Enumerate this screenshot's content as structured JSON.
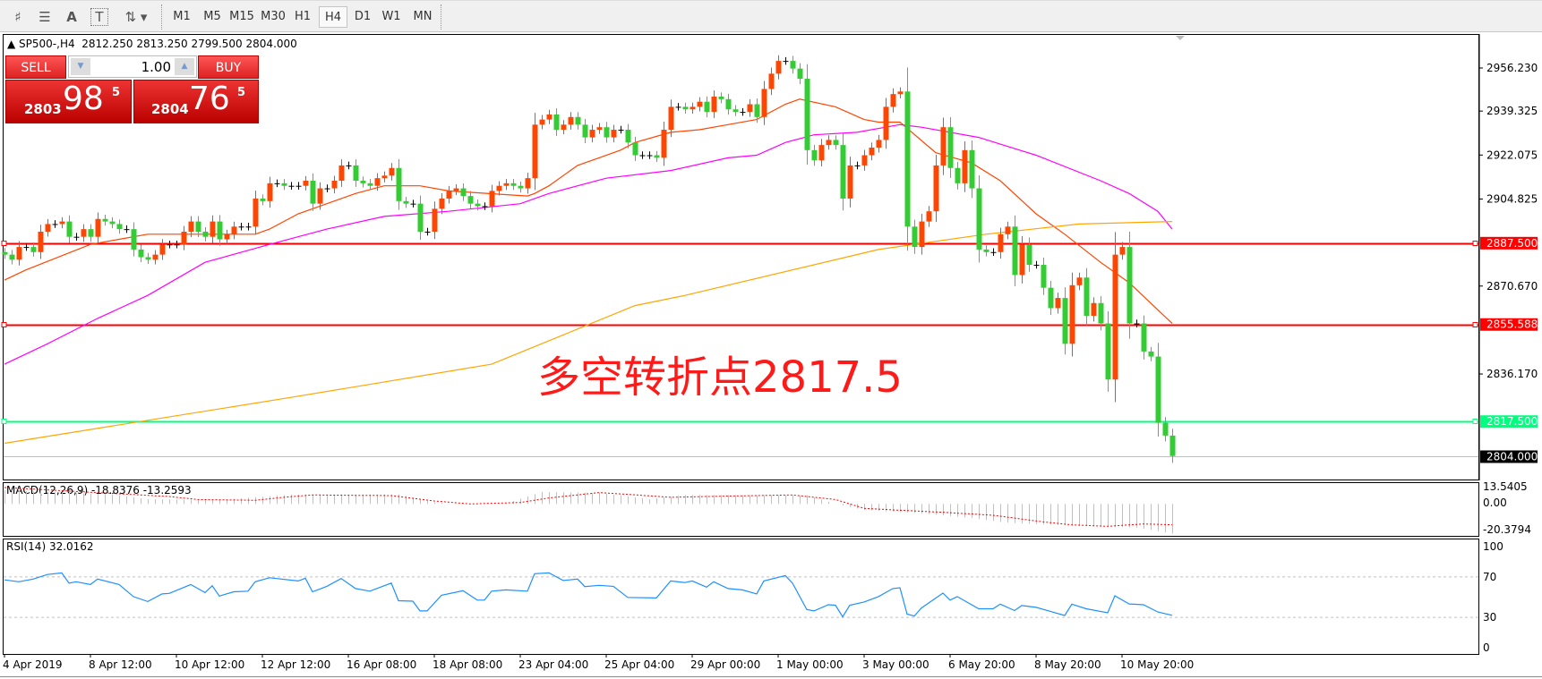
{
  "toolbar": {
    "icons": [
      "elliott-wave-icon",
      "fibonacci-fan-icon",
      "text-icon",
      "text-label-icon",
      "arrows-icon"
    ],
    "timeframes": [
      "M1",
      "M5",
      "M15",
      "M30",
      "H1",
      "H4",
      "D1",
      "W1",
      "MN"
    ],
    "active_timeframe": "H4"
  },
  "chart_header": {
    "symbol": "SP500-,H4",
    "open": "2812.250",
    "high": "2813.250",
    "low": "2799.500",
    "close": "2804.000"
  },
  "trade_panel": {
    "sell_label": "SELL",
    "buy_label": "BUY",
    "lot": "1.00",
    "bid_prefix": "2803",
    "bid_big": "98",
    "bid_sup": "5",
    "ask_prefix": "2804",
    "ask_big": "76",
    "ask_sup": "5"
  },
  "annotation": "多空转折点2817.5",
  "colors": {
    "bull": "#ff4500",
    "bear": "#32cd32",
    "ma_fast": "#ff4500",
    "ma_mid": "#ff00ff",
    "ma_slow": "#ffa500",
    "level_red": "#ff0000",
    "level_green": "#00ff7f",
    "rsi": "#1e90ff",
    "macd_signal": "#ff0000",
    "macd_hist": "#c0c0c0"
  },
  "chart_data": {
    "type": "candlestick",
    "price_axis_labels": [
      "2956.230",
      "2939.325",
      "2922.075",
      "2904.825",
      "2870.670",
      "2836.170"
    ],
    "ylim": [
      2795.5,
      2962.5
    ],
    "closes": [
      2883,
      2881,
      2886,
      2886,
      2884,
      2892,
      2895,
      2895,
      2896,
      2890,
      2890,
      2893,
      2890,
      2897,
      2896,
      2895,
      2893,
      2893,
      2885,
      2882,
      2881,
      2883,
      2887,
      2887,
      2887,
      2892,
      2896,
      2892,
      2890,
      2896,
      2889,
      2891,
      2894,
      2894,
      2894,
      2905,
      2904,
      2911,
      2911,
      2910,
      2910,
      2910,
      2912,
      2903,
      2909,
      2909,
      2912,
      2918,
      2918,
      2912,
      2911,
      2910,
      2913,
      2914,
      2917,
      2904,
      2903,
      2903,
      2892,
      2892,
      2901,
      2905,
      2908,
      2909,
      2906,
      2903,
      2902,
      2902,
      2908,
      2910,
      2911,
      2910,
      2909,
      2913,
      2934,
      2936,
      2938,
      2932,
      2934,
      2937,
      2934,
      2929,
      2932,
      2933,
      2929,
      2932,
      2932,
      2927,
      2922,
      2922,
      2922,
      2921,
      2932,
      2941,
      2941,
      2940,
      2941,
      2943,
      2939,
      2945,
      2944,
      2940,
      2939,
      2939,
      2942,
      2937,
      2948,
      2954,
      2959,
      2959,
      2956,
      2952,
      2924,
      2920,
      2926,
      2928,
      2926,
      2905,
      2918,
      2918,
      2922,
      2925,
      2928,
      2941,
      2946,
      2947,
      2894,
      2886,
      2896,
      2900,
      2918,
      2933,
      2917,
      2911,
      2924,
      2909,
      2885,
      2884,
      2884,
      2891,
      2894,
      2875,
      2887,
      2879,
      2879,
      2870,
      2862,
      2866,
      2848,
      2871,
      2874,
      2859,
      2864,
      2856,
      2834,
      2883,
      2886,
      2856,
      2856,
      2845,
      2843,
      2817,
      2812,
      2804
    ],
    "moving_averages": [
      {
        "color_key": "ma_fast",
        "points": [
          [
            0,
            2873
          ],
          [
            3,
            2877
          ],
          [
            12,
            2887
          ],
          [
            16,
            2889
          ],
          [
            20,
            2891
          ],
          [
            35,
            2891
          ],
          [
            37,
            2893
          ],
          [
            41,
            2899
          ],
          [
            45,
            2903
          ],
          [
            49,
            2907
          ],
          [
            53,
            2910
          ],
          [
            58,
            2910
          ],
          [
            62,
            2908
          ],
          [
            73,
            2906
          ],
          [
            74,
            2907
          ],
          [
            76,
            2910
          ],
          [
            80,
            2918
          ],
          [
            83,
            2921
          ],
          [
            86,
            2924
          ],
          [
            88,
            2927
          ],
          [
            93,
            2931
          ],
          [
            97,
            2932
          ],
          [
            101,
            2934
          ],
          [
            105,
            2936
          ],
          [
            109,
            2942
          ],
          [
            111,
            2944
          ],
          [
            116,
            2941
          ],
          [
            120,
            2936
          ],
          [
            122,
            2935
          ],
          [
            125,
            2935
          ],
          [
            130,
            2923
          ],
          [
            135,
            2919
          ],
          [
            139,
            2912
          ],
          [
            144,
            2899
          ],
          [
            148,
            2891
          ],
          [
            153,
            2880
          ],
          [
            157,
            2872
          ],
          [
            163,
            2856
          ]
        ]
      },
      {
        "color_key": "ma_mid",
        "points": [
          [
            0,
            2840
          ],
          [
            6,
            2848
          ],
          [
            13,
            2858
          ],
          [
            20,
            2867
          ],
          [
            28,
            2880
          ],
          [
            37,
            2887
          ],
          [
            45,
            2893
          ],
          [
            53,
            2898
          ],
          [
            62,
            2900
          ],
          [
            72,
            2903
          ],
          [
            76,
            2907
          ],
          [
            84,
            2913
          ],
          [
            93,
            2916
          ],
          [
            101,
            2921
          ],
          [
            105,
            2922
          ],
          [
            109,
            2927
          ],
          [
            113,
            2930
          ],
          [
            119,
            2931
          ],
          [
            125,
            2934
          ],
          [
            128,
            2933
          ],
          [
            136,
            2929
          ],
          [
            144,
            2922
          ],
          [
            153,
            2912
          ],
          [
            157,
            2907
          ],
          [
            161,
            2900
          ],
          [
            163,
            2893
          ]
        ]
      },
      {
        "color_key": "ma_slow",
        "points": [
          [
            0,
            2809
          ],
          [
            40,
            2827
          ],
          [
            68,
            2840
          ],
          [
            88,
            2863
          ],
          [
            95,
            2867
          ],
          [
            122,
            2885
          ],
          [
            137,
            2891
          ],
          [
            150,
            2895
          ],
          [
            163,
            2896
          ]
        ]
      }
    ],
    "levels": [
      {
        "value": 2887.5,
        "label": "2887.500",
        "color_key": "level_red"
      },
      {
        "value": 2855.588,
        "label": "2855.588",
        "color_key": "level_red"
      },
      {
        "value": 2817.5,
        "label": "2817.500",
        "color_key": "level_green"
      }
    ],
    "current_price": {
      "value": 2804.0,
      "label": "2804.000"
    },
    "time_labels": [
      "4 Apr 2019",
      "8 Apr 12:00",
      "10 Apr 12:00",
      "12 Apr 12:00",
      "16 Apr 08:00",
      "18 Apr 08:00",
      "23 Apr 04:00",
      "25 Apr 04:00",
      "29 Apr 00:00",
      "1 May 00:00",
      "3 May 00:00",
      "6 May 20:00",
      "8 May 20:00",
      "10 May 20:00"
    ],
    "macd": {
      "title": "MACD(12,26,9) -18.8376 -13.2593",
      "axis_labels": [
        "13.5405",
        "0.00",
        "-20.3794"
      ],
      "ylim": [
        -20.3794,
        13.5405
      ],
      "main": [
        [
          0,
          8.7
        ],
        [
          15,
          6
        ],
        [
          20,
          3
        ],
        [
          30,
          2.5
        ],
        [
          40,
          6
        ],
        [
          55,
          6
        ],
        [
          60,
          1
        ],
        [
          65,
          -0.5
        ],
        [
          70,
          0.5
        ],
        [
          75,
          7.6
        ],
        [
          83,
          7
        ],
        [
          90,
          3
        ],
        [
          95,
          5.7
        ],
        [
          112,
          5.5
        ],
        [
          116,
          0
        ],
        [
          120,
          -3.8
        ],
        [
          128,
          -6
        ],
        [
          135,
          -9
        ],
        [
          140,
          -12
        ],
        [
          150,
          -14
        ],
        [
          158,
          -15
        ],
        [
          163,
          -18.8376
        ]
      ],
      "signal": [
        [
          0,
          10.4
        ],
        [
          23,
          4.7
        ],
        [
          27,
          2.8
        ],
        [
          35,
          2.3
        ],
        [
          39,
          4.2
        ],
        [
          43,
          5.7
        ],
        [
          54,
          5.3
        ],
        [
          60,
          1.9
        ],
        [
          65,
          0
        ],
        [
          72,
          0.9
        ],
        [
          76,
          3.8
        ],
        [
          83,
          7.2
        ],
        [
          87,
          6.1
        ],
        [
          93,
          4.2
        ],
        [
          100,
          4.9
        ],
        [
          110,
          5.7
        ],
        [
          116,
          2.8
        ],
        [
          120,
          -2.8
        ],
        [
          124,
          -3.8
        ],
        [
          131,
          -5.3
        ],
        [
          138,
          -7.2
        ],
        [
          145,
          -11.4
        ],
        [
          149,
          -13.3
        ],
        [
          154,
          -14.2
        ],
        [
          159,
          -12.7
        ],
        [
          163,
          -13.2593
        ]
      ]
    },
    "rsi": {
      "title": "RSI(14) 32.0162",
      "axis_labels": [
        "100",
        "70",
        "30",
        "0"
      ],
      "levels": [
        70,
        30
      ],
      "ylim": [
        0,
        100
      ],
      "points": [
        [
          0,
          67.1
        ],
        [
          2,
          65.2
        ],
        [
          4,
          67.9
        ],
        [
          6,
          72.4
        ],
        [
          8,
          74.0
        ],
        [
          9,
          63.9
        ],
        [
          10,
          65.2
        ],
        [
          12,
          62.5
        ],
        [
          13,
          67.9
        ],
        [
          16,
          62.5
        ],
        [
          18,
          50.5
        ],
        [
          20,
          45.7
        ],
        [
          22,
          53.2
        ],
        [
          23,
          53.7
        ],
        [
          26,
          62.5
        ],
        [
          28,
          54.5
        ],
        [
          29,
          61.2
        ],
        [
          30,
          51.1
        ],
        [
          32,
          55.3
        ],
        [
          34,
          55.9
        ],
        [
          35,
          65.2
        ],
        [
          37,
          69.2
        ],
        [
          41,
          66.0
        ],
        [
          42,
          68.7
        ],
        [
          43,
          55.3
        ],
        [
          45,
          60.7
        ],
        [
          47,
          68.4
        ],
        [
          49,
          58.5
        ],
        [
          51,
          55.9
        ],
        [
          54,
          63.9
        ],
        [
          55,
          46.5
        ],
        [
          57,
          46.0
        ],
        [
          58,
          36.4
        ],
        [
          59,
          36.4
        ],
        [
          61,
          51.9
        ],
        [
          64,
          56.4
        ],
        [
          66,
          47.1
        ],
        [
          67,
          47.1
        ],
        [
          68,
          55.9
        ],
        [
          70,
          57.2
        ],
        [
          73,
          55.9
        ],
        [
          74,
          73.2
        ],
        [
          76,
          74.0
        ],
        [
          78,
          66.5
        ],
        [
          80,
          67.9
        ],
        [
          81,
          60.4
        ],
        [
          83,
          61.7
        ],
        [
          85,
          60.7
        ],
        [
          87,
          49.7
        ],
        [
          91,
          49.2
        ],
        [
          93,
          66.0
        ],
        [
          95,
          64.4
        ],
        [
          96,
          66.0
        ],
        [
          98,
          59.9
        ],
        [
          99,
          65.2
        ],
        [
          101,
          58.5
        ],
        [
          103,
          57.2
        ],
        [
          105,
          53.2
        ],
        [
          106,
          66.0
        ],
        [
          109,
          71.3
        ],
        [
          110,
          63.9
        ],
        [
          112,
          37.7
        ],
        [
          113,
          36.4
        ],
        [
          115,
          42.5
        ],
        [
          116,
          42.0
        ],
        [
          117,
          30.5
        ],
        [
          118,
          42.0
        ],
        [
          120,
          45.2
        ],
        [
          122,
          50.5
        ],
        [
          124,
          58.5
        ],
        [
          125,
          59.3
        ],
        [
          126,
          33.2
        ],
        [
          127,
          31.3
        ],
        [
          128,
          39.3
        ],
        [
          131,
          54.0
        ],
        [
          132,
          47.1
        ],
        [
          133,
          50.5
        ],
        [
          136,
          38.5
        ],
        [
          138,
          38.5
        ],
        [
          139,
          43.1
        ],
        [
          141,
          36.7
        ],
        [
          142,
          41.7
        ],
        [
          144,
          39.9
        ],
        [
          146,
          35.9
        ],
        [
          148,
          31.9
        ],
        [
          149,
          43.1
        ],
        [
          151,
          38.5
        ],
        [
          154,
          34.5
        ],
        [
          155,
          51.3
        ],
        [
          157,
          43.3
        ],
        [
          159,
          42.5
        ],
        [
          161,
          35.3
        ],
        [
          163,
          32.0162
        ]
      ]
    }
  }
}
